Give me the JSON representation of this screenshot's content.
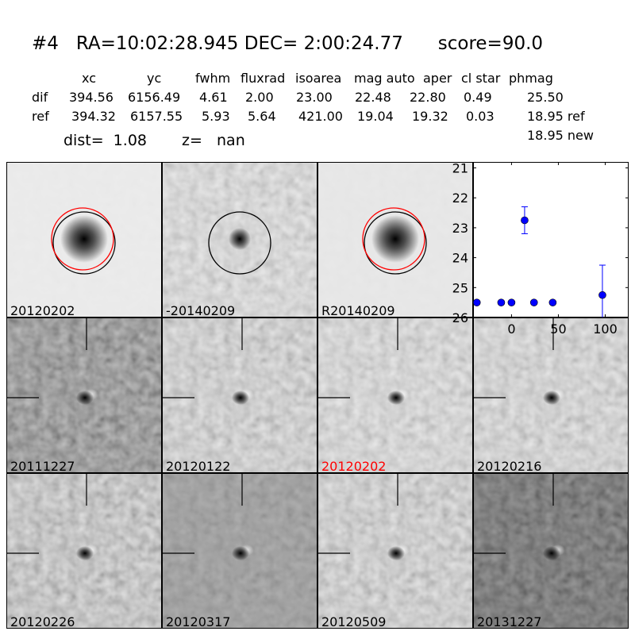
{
  "title": {
    "id": "#4",
    "ra": "RA=10:02:28.945",
    "dec": "DEC= 2:00:24.77",
    "score": "score=90.0"
  },
  "table": {
    "headers": [
      "xc",
      "yc",
      "fwhm",
      "fluxrad",
      "isoarea",
      "mag auto",
      "aper",
      "cl star",
      "phmag"
    ],
    "rows": [
      {
        "label": "dif",
        "values": [
          "394.56",
          "6156.49",
          "4.61",
          "2.00",
          "23.00",
          "22.48",
          "22.80",
          "0.49",
          "25.50"
        ]
      },
      {
        "label": "ref",
        "values": [
          "394.32",
          "6157.55",
          "5.93",
          "5.64",
          "421.00",
          "19.04",
          "19.32",
          "0.03",
          "18.95 ref"
        ]
      }
    ],
    "phmag_new": "18.95 new",
    "dist": "dist=  1.08",
    "z": "z=   nan"
  },
  "stamps_top": [
    {
      "label": "20120202",
      "bg": "#e8e8e8",
      "circles": [
        "#000000",
        "#ff0000"
      ]
    },
    {
      "label": "-20140209",
      "bg": "#b8b8b8",
      "circles": [
        "#000000"
      ]
    },
    {
      "label": "R20140209",
      "bg": "#e4e4e4",
      "circles": [
        "#000000",
        "#ff0000"
      ]
    }
  ],
  "stamps": [
    {
      "label": "20111227",
      "bg": "#707070",
      "highlight": false
    },
    {
      "label": "20120122",
      "bg": "#aaaaaa",
      "highlight": false
    },
    {
      "label": "20120202",
      "bg": "#b4b4b4",
      "highlight": true
    },
    {
      "label": "20120216",
      "bg": "#b0b0b0",
      "highlight": false
    },
    {
      "label": "20120226",
      "bg": "#9a9a9a",
      "highlight": false
    },
    {
      "label": "20120317",
      "bg": "#8c8c8c",
      "highlight": false
    },
    {
      "label": "20120509",
      "bg": "#a8a8a8",
      "highlight": false
    },
    {
      "label": "20131227",
      "bg": "#5a5a5a",
      "highlight": false
    }
  ],
  "colors": {
    "highlight": "#ff0000",
    "points": "#0000ff"
  },
  "chart_data": {
    "type": "scatter",
    "xlim": [
      -41,
      125
    ],
    "ylim": [
      26,
      20.8
    ],
    "y_inverted": true,
    "xticks": [
      0,
      50,
      100
    ],
    "yticks": [
      21,
      22,
      23,
      24,
      25,
      26
    ],
    "x": [
      -37,
      -11,
      0,
      14,
      24,
      44,
      97
    ],
    "y": [
      25.5,
      25.5,
      25.5,
      22.75,
      25.5,
      25.5,
      25.25
    ],
    "yerr": [
      0.05,
      0.05,
      0.05,
      0.45,
      0.05,
      0.05,
      1.0
    ]
  }
}
